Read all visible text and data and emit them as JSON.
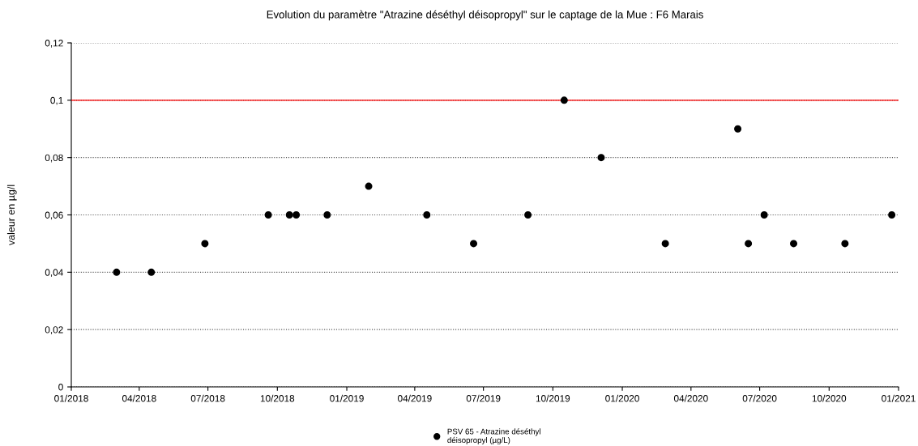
{
  "chart_data": {
    "type": "scatter",
    "title": "Evolution du paramètre \"Atrazine déséthyl déisopropyl\" sur le captage de la Mue : F6 Marais",
    "ylabel": "valeur en µg/l",
    "x": [
      "2018-03-02",
      "2018-04-17",
      "2018-06-27",
      "2018-09-19",
      "2018-10-17",
      "2018-10-26",
      "2018-12-06",
      "2019-01-30",
      "2019-04-17",
      "2019-06-18",
      "2019-08-29",
      "2019-10-16",
      "2019-12-04",
      "2020-02-27",
      "2020-06-02",
      "2020-06-16",
      "2020-07-07",
      "2020-08-15",
      "2020-10-22",
      "2020-12-23"
    ],
    "series": [
      {
        "name": "PSV 65 - Atrazine déséthyl\ndéisopropyl (µg/L)",
        "color": "#000000",
        "values": [
          0.04,
          0.04,
          0.05,
          0.06,
          0.06,
          0.06,
          0.06,
          0.07,
          0.06,
          0.05,
          0.06,
          0.1,
          0.08,
          0.05,
          0.09,
          0.05,
          0.06,
          0.05,
          0.05,
          0.06
        ]
      }
    ],
    "xlim": [
      "2018-01-01",
      "2021-01-01"
    ],
    "xticks": [
      {
        "value": "2018-01-01",
        "label": "01/2018"
      },
      {
        "value": "2018-04-01",
        "label": "04/2018"
      },
      {
        "value": "2018-07-01",
        "label": "07/2018"
      },
      {
        "value": "2018-10-01",
        "label": "10/2018"
      },
      {
        "value": "2019-01-01",
        "label": "01/2019"
      },
      {
        "value": "2019-04-01",
        "label": "04/2019"
      },
      {
        "value": "2019-07-01",
        "label": "07/2019"
      },
      {
        "value": "2019-10-01",
        "label": "10/2019"
      },
      {
        "value": "2020-01-01",
        "label": "01/2020"
      },
      {
        "value": "2020-04-01",
        "label": "04/2020"
      },
      {
        "value": "2020-07-01",
        "label": "07/2020"
      },
      {
        "value": "2020-10-01",
        "label": "10/2020"
      },
      {
        "value": "2021-01-01",
        "label": "01/2021"
      }
    ],
    "ylim": [
      0,
      0.12
    ],
    "yticks": [
      0,
      {
        "value": 0.02,
        "label": "0,02"
      },
      {
        "value": 0.04,
        "label": "0,04"
      },
      {
        "value": 0.06,
        "label": "0,06"
      },
      {
        "value": 0.08,
        "label": "0,08"
      },
      {
        "value": 0.1,
        "label": "0,1"
      },
      {
        "value": 0.12,
        "label": "0,12"
      }
    ],
    "ref_lines": [
      {
        "axis": "y",
        "value": 0.1,
        "color": "#ff0000",
        "line_style": "solid"
      }
    ],
    "grid": "y",
    "legend": "bottom",
    "marker": "circle"
  }
}
